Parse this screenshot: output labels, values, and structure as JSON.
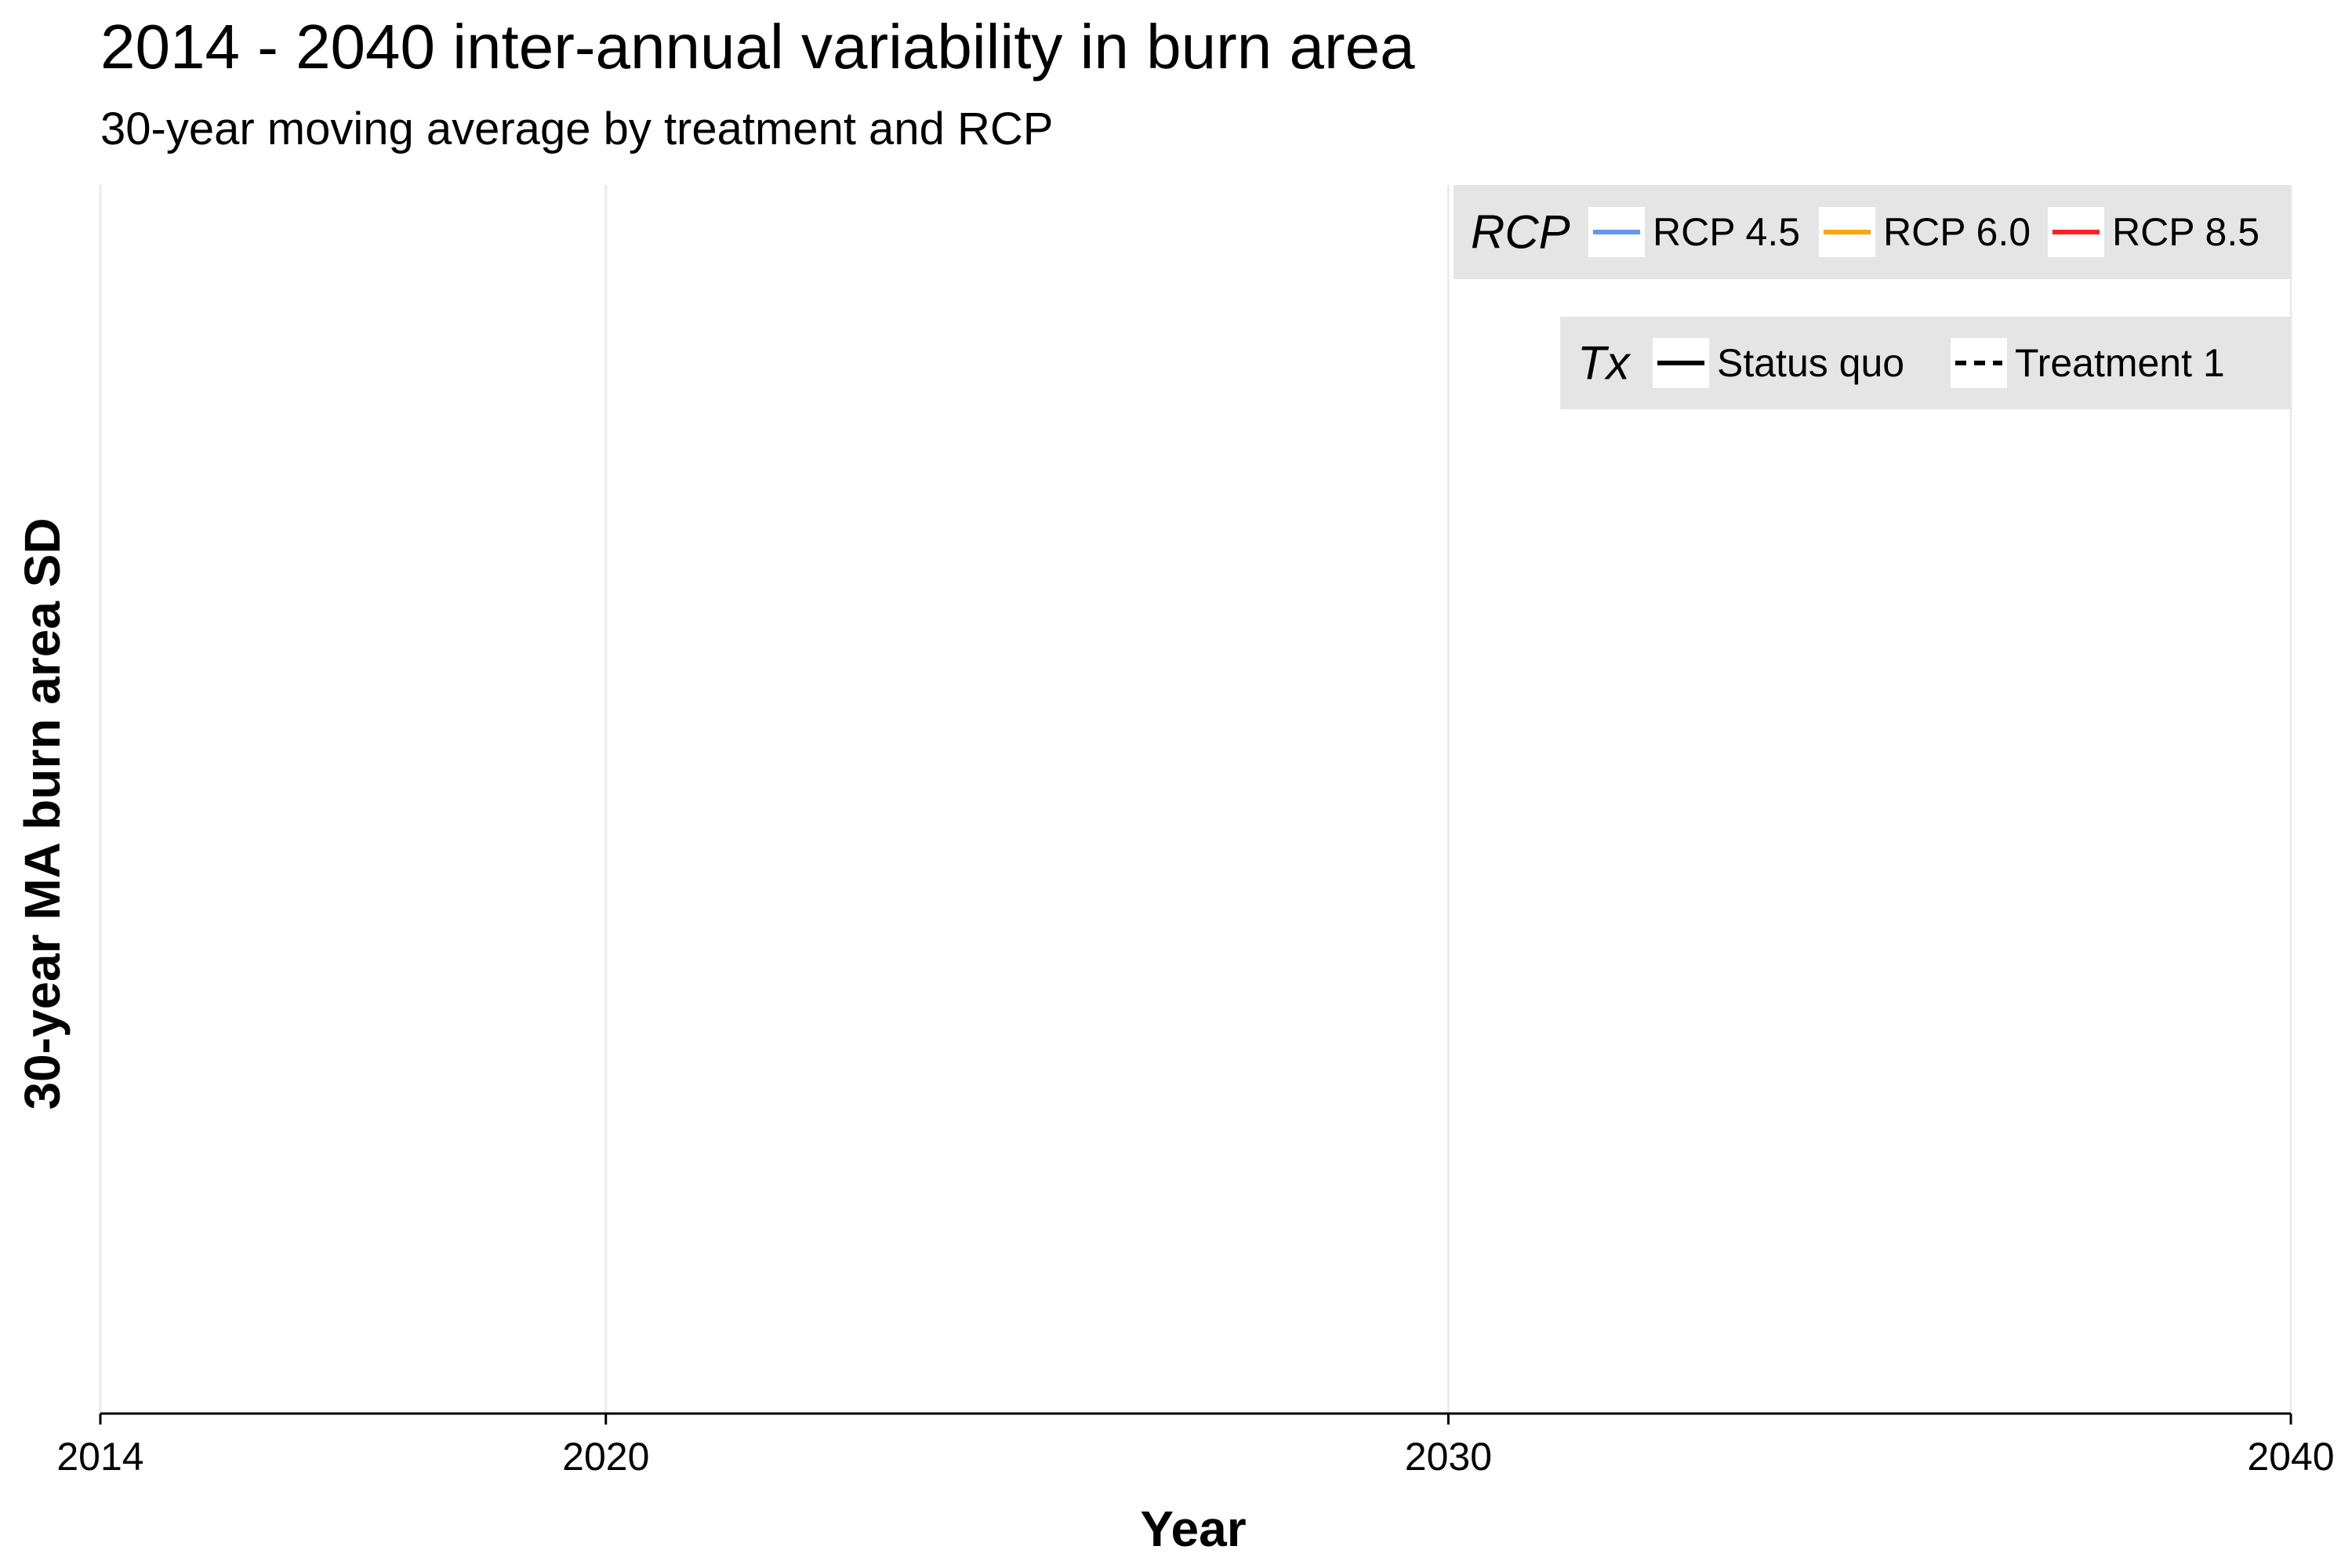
{
  "title": "2014 - 2040 inter-annual variability in burn area",
  "subtitle": "30-year moving average by treatment and RCP",
  "chart_data": {
    "type": "line",
    "title": "2014 - 2040 inter-annual variability in burn area",
    "subtitle": "30-year moving average by treatment and RCP",
    "xlabel": "Year",
    "ylabel": "30-year MA burn area SD",
    "xlim": [
      2014,
      2040
    ],
    "x_ticks": [
      "2014",
      "2020",
      "2030",
      "2040"
    ],
    "x_tick_values": [
      2014,
      2020,
      2030,
      2040
    ],
    "grid": true,
    "series": [],
    "legend_placement": "top-right",
    "legend": {
      "rcp": {
        "title": "RCP",
        "items": [
          {
            "label": "RCP 4.5",
            "color": "#6495ed"
          },
          {
            "label": "RCP 6.0",
            "color": "#ffa500"
          },
          {
            "label": "RCP 8.5",
            "color": "#ff2020"
          }
        ]
      },
      "tx": {
        "title": "Tx",
        "items": [
          {
            "label": "Status quo",
            "linetype": "solid"
          },
          {
            "label": "Treatment 1",
            "linetype": "dashed"
          }
        ]
      }
    }
  }
}
